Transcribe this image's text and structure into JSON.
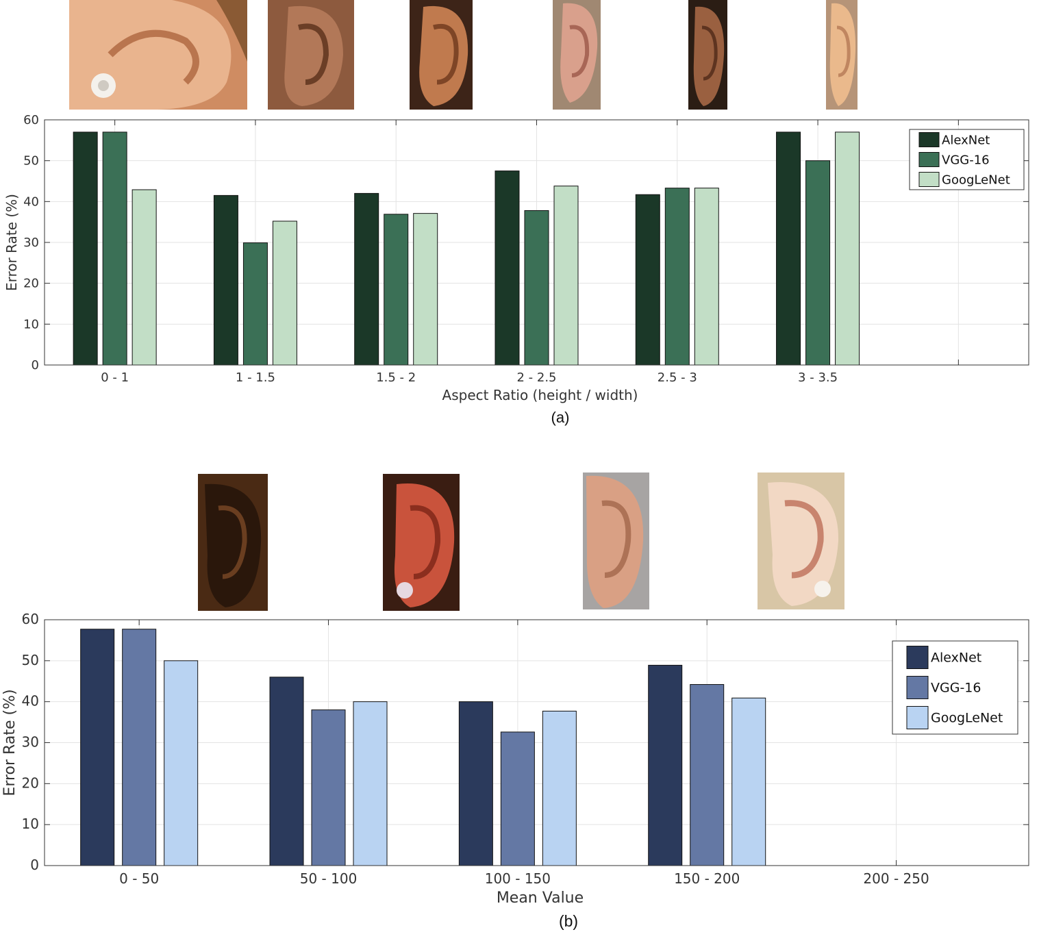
{
  "colors": {
    "panel_a": [
      "#1b3828",
      "#3b7056",
      "#c2dec6"
    ],
    "panel_b": [
      "#2b3a5c",
      "#6478a4",
      "#b9d3f2"
    ],
    "axis": "#333333",
    "grid": "#e3e3e3",
    "text": "#333333"
  },
  "icons": {
    "panel_a_thumbnails": [
      "ear-photo-icon",
      "ear-photo-icon",
      "ear-photo-icon",
      "ear-photo-icon",
      "ear-photo-icon",
      "ear-photo-icon"
    ],
    "panel_b_thumbnails": [
      "ear-photo-icon",
      "ear-photo-icon",
      "ear-photo-icon",
      "ear-photo-icon"
    ]
  },
  "chart_data": [
    {
      "type": "bar",
      "panel_label": "(a)",
      "xlabel": "Aspect Ratio (height / width)",
      "ylabel": "Error Rate (%)",
      "categories": [
        "0 - 1",
        "1 - 1.5",
        "1.5 - 2",
        "2 - 2.5",
        "2.5 - 3",
        "3 - 3.5"
      ],
      "ylim": [
        0,
        60
      ],
      "yticks": [
        "0",
        "10",
        "20",
        "30",
        "40",
        "50",
        "60"
      ],
      "series": [
        {
          "name": "AlexNet",
          "values": [
            57,
            41.5,
            42,
            47.5,
            41.7,
            57
          ]
        },
        {
          "name": "VGG-16",
          "values": [
            57,
            29.9,
            36.9,
            37.8,
            43.3,
            50
          ]
        },
        {
          "name": "GoogLeNet",
          "values": [
            42.9,
            35.2,
            37.1,
            43.8,
            43.3,
            57
          ]
        }
      ],
      "grid": true,
      "legend": "top-right"
    },
    {
      "type": "bar",
      "panel_label": "(b)",
      "xlabel": "Mean Value",
      "ylabel": "Error Rate (%)",
      "categories": [
        "0 - 50",
        "50 - 100",
        "100 - 150",
        "150 - 200",
        "200 - 250"
      ],
      "ylim": [
        0,
        60
      ],
      "yticks": [
        "0",
        "10",
        "20",
        "30",
        "40",
        "50",
        "60"
      ],
      "series": [
        {
          "name": "AlexNet",
          "values": [
            57.7,
            46,
            40,
            48.9,
            null
          ]
        },
        {
          "name": "VGG-16",
          "values": [
            57.7,
            38,
            32.6,
            44.2,
            null
          ]
        },
        {
          "name": "GoogLeNet",
          "values": [
            50,
            40,
            37.7,
            40.9,
            null
          ]
        }
      ],
      "grid": true,
      "legend": "top-right"
    }
  ]
}
